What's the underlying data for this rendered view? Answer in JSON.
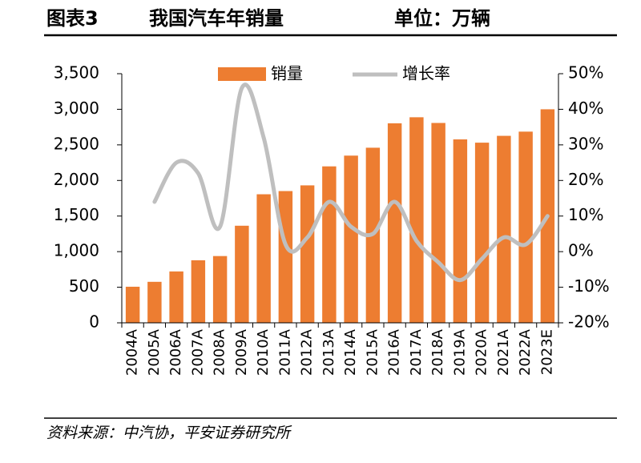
{
  "header": {
    "label": "图表3",
    "title": "我国汽车年销量",
    "unit": "单位：万辆"
  },
  "footer": {
    "source": "资料来源：中汽协，平安证券研究所"
  },
  "chart_data": {
    "type": "bar-line",
    "categories": [
      "2004A",
      "2005A",
      "2006A",
      "2007A",
      "2008A",
      "2009A",
      "2010A",
      "2011A",
      "2012A",
      "2013A",
      "2014A",
      "2015A",
      "2016A",
      "2017A",
      "2018A",
      "2019A",
      "2020A",
      "2021A",
      "2022A",
      "2023E"
    ],
    "series": [
      {
        "name": "销量",
        "type": "bar",
        "color": "#ed7d31",
        "values": [
          507,
          576,
          722,
          879,
          938,
          1364,
          1806,
          1851,
          1931,
          2198,
          2349,
          2460,
          2803,
          2888,
          2808,
          2577,
          2531,
          2627,
          2686,
          3000
        ]
      },
      {
        "name": "增长率",
        "type": "line",
        "axis": "y2",
        "color": "#bfbfbf",
        "values": [
          null,
          14,
          25,
          22,
          7,
          46,
          32,
          2,
          4,
          14,
          7,
          5,
          14,
          3,
          -3,
          -8,
          -2,
          4,
          2,
          10
        ]
      }
    ],
    "ylim": [
      0,
      3500
    ],
    "yticks": [
      0,
      500,
      {
        "value": 1000,
        "label": "1,000"
      },
      {
        "value": 1500,
        "label": "1,500"
      },
      {
        "value": 2000,
        "label": "2,000"
      },
      {
        "value": 2500,
        "label": "2,500"
      },
      {
        "value": 3000,
        "label": "3,000"
      },
      {
        "value": 3500,
        "label": "3,500"
      }
    ],
    "y2lim": [
      -20,
      50
    ],
    "y2ticks": [
      {
        "value": -20,
        "label": "-20%"
      },
      {
        "value": -10,
        "label": "-10%"
      },
      {
        "value": 0,
        "label": "0%"
      },
      {
        "value": 10,
        "label": "10%"
      },
      {
        "value": 20,
        "label": "20%"
      },
      {
        "value": 30,
        "label": "30%"
      },
      {
        "value": 40,
        "label": "40%"
      },
      {
        "value": 50,
        "label": "50%"
      }
    ],
    "grid": false,
    "legend": "top"
  }
}
